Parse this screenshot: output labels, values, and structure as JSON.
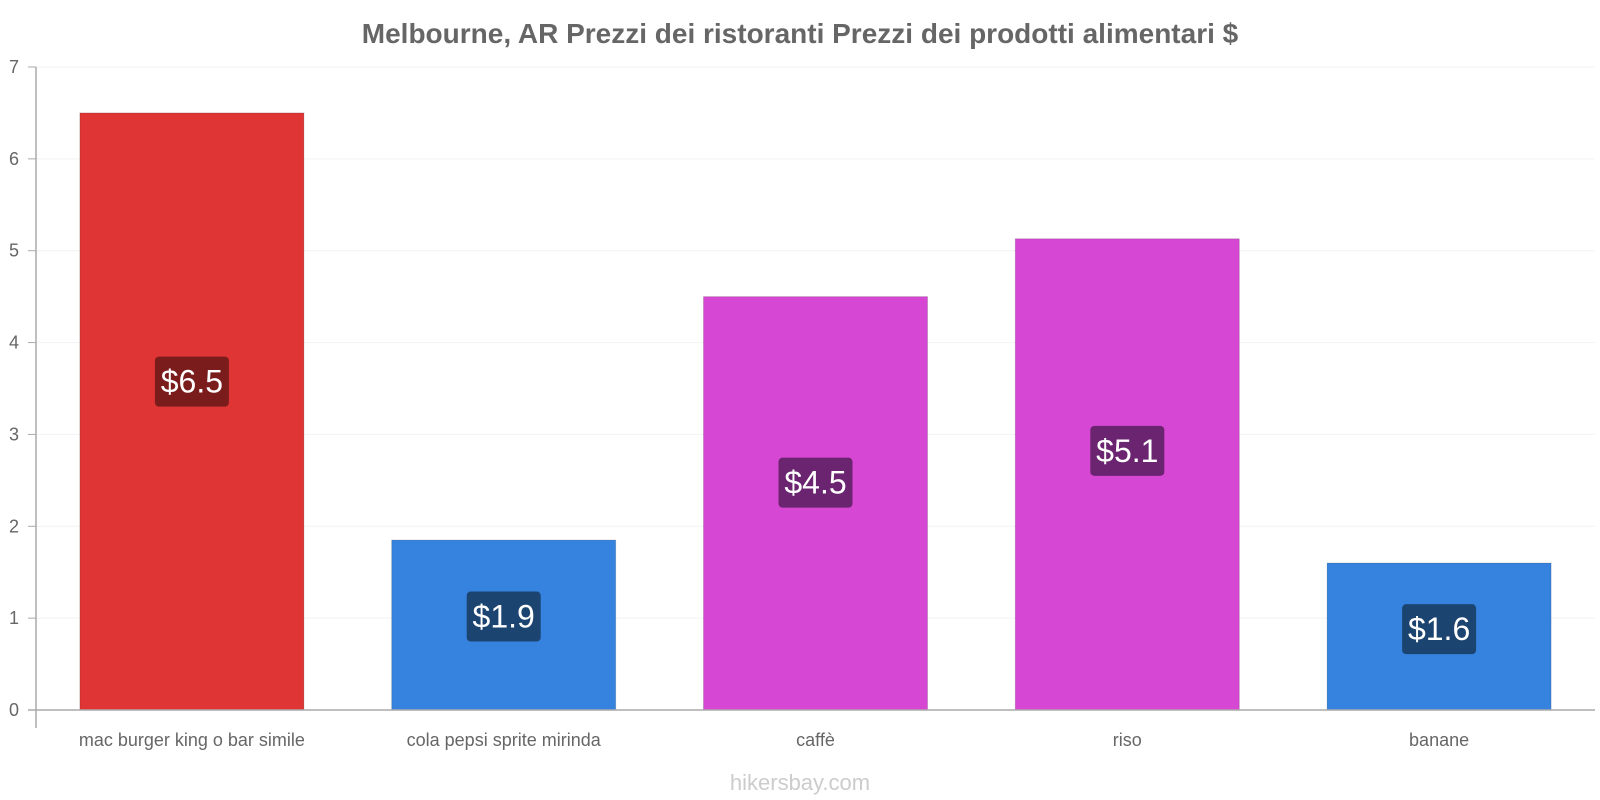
{
  "chart_data": {
    "type": "bar",
    "title": "Melbourne, AR Prezzi dei ristoranti Prezzi dei prodotti alimentari $",
    "categories": [
      "mac burger king o bar simile",
      "cola pepsi sprite mirinda",
      "caffè",
      "riso",
      "banane"
    ],
    "values": [
      6.5,
      1.85,
      4.5,
      5.13,
      1.6
    ],
    "value_labels": [
      "$6.5",
      "$1.9",
      "$4.5",
      "$5.1",
      "$1.6"
    ],
    "bar_colors": [
      "#e03535",
      "#3583de",
      "#d647d3",
      "#d647d3",
      "#3583de"
    ],
    "label_bg_colors": [
      "#7a1c1c",
      "#1c4470",
      "#6b2470",
      "#6b2470",
      "#1c4470"
    ],
    "ylim": [
      0,
      7
    ],
    "yticks": [
      0,
      1,
      2,
      3,
      4,
      5,
      6,
      7
    ],
    "xlabel": "",
    "ylabel": "",
    "grid": true,
    "legend": "none"
  },
  "watermark": "hikersbay.com"
}
